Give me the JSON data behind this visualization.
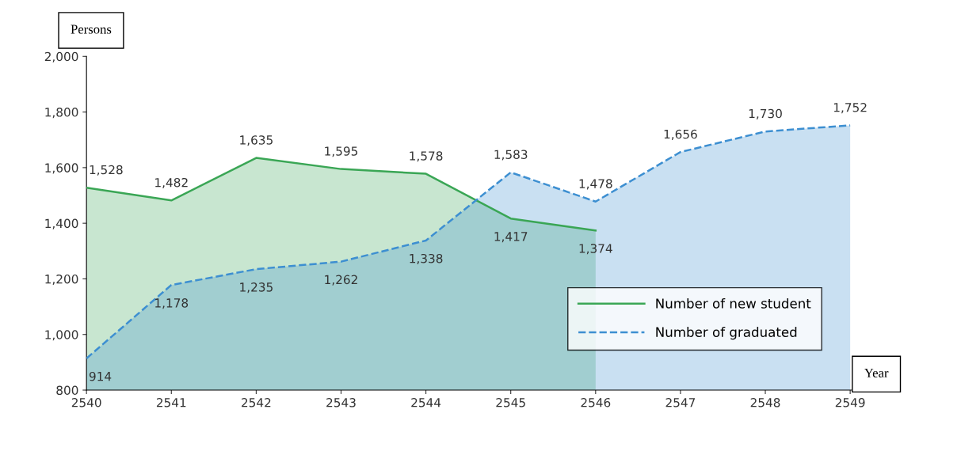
{
  "chart_data": {
    "type": "area",
    "xlabel": "Year",
    "ylabel": "Persons",
    "categories": [
      "2540",
      "2541",
      "2542",
      "2543",
      "2544",
      "2545",
      "2546",
      "2547",
      "2548",
      "2549"
    ],
    "series": [
      {
        "name": "Number of new student",
        "color": "#3aa655",
        "line_style": "solid",
        "values": [
          1528,
          1482,
          1635,
          1595,
          1578,
          1417,
          1374,
          null,
          null,
          null
        ],
        "value_labels": [
          "1,528",
          "1,482",
          "1,635",
          "1,595",
          "1,578",
          "1,417",
          "1,374",
          null,
          null,
          null
        ]
      },
      {
        "name": "Number of graduated",
        "color": "#3d8fd1",
        "line_style": "dashed",
        "values": [
          914,
          1178,
          1235,
          1262,
          1338,
          1583,
          1478,
          1656,
          1730,
          1752
        ],
        "value_labels": [
          "914",
          "1,178",
          "1,235",
          "1,262",
          "1,338",
          "1,583",
          "1,478",
          "1,656",
          "1,730",
          "1,752"
        ]
      }
    ],
    "ylim": [
      800,
      2000
    ],
    "yticks": [
      {
        "value": 800,
        "label": "800"
      },
      {
        "value": 1000,
        "label": "1,000"
      },
      {
        "value": 1200,
        "label": "1,200"
      },
      {
        "value": 1400,
        "label": "1,400"
      },
      {
        "value": 1600,
        "label": "1,600"
      },
      {
        "value": 1800,
        "label": "1,800"
      },
      {
        "value": 2000,
        "label": "2,000"
      }
    ],
    "legend": "bottom right",
    "grid": false
  }
}
